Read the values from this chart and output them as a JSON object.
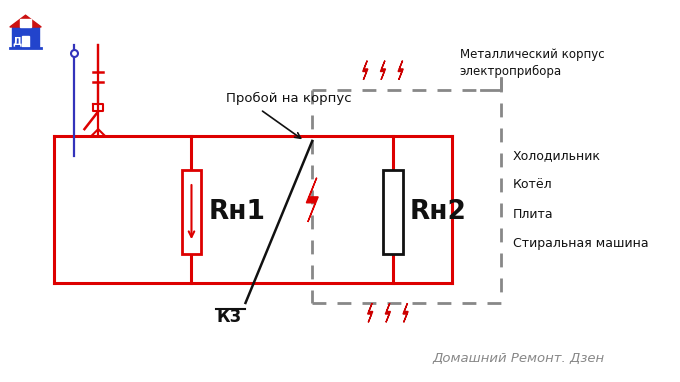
{
  "bg_color": "#ffffff",
  "circuit_color": "#dd0000",
  "neutral_color": "#3333bb",
  "dashed_box_color": "#888888",
  "label_proboy": "Пробой на корпус",
  "label_metallic": "Металлический корпус\nэлектроприбора",
  "label_rh1": "Rн1",
  "label_rh2": "Rн2",
  "label_kz": "К3",
  "label_devices": [
    "Холодильник",
    "Котёл",
    "Плита",
    "Стиральная машина"
  ],
  "label_footer": "Домашний Ремонт. Дзен"
}
